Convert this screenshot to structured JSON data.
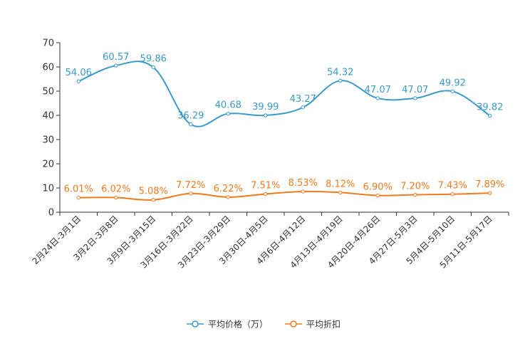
{
  "chart_data": {
    "type": "line",
    "title": "",
    "xlabel": "",
    "ylabel": "",
    "ylim": [
      0,
      70
    ],
    "yticks": [
      0,
      10,
      20,
      30,
      40,
      50,
      60,
      70
    ],
    "categories": [
      "2月24日-3月1日",
      "3月2日-3月8日",
      "3月9日-3月15日",
      "3月16日-3月22日",
      "3月23日-3月29日",
      "3月30日-4月5日",
      "4月6日-4月12日",
      "4月13日-4月19日",
      "4月20日-4月26日",
      "4月27日-5月3日",
      "5月4日-5月10日",
      "5月11日-5月17日"
    ],
    "series": [
      {
        "name": "平均价格（万）",
        "color": "#3a9ac9",
        "values": [
          54.06,
          60.57,
          59.86,
          36.29,
          40.68,
          39.99,
          43.27,
          54.32,
          47.07,
          47.07,
          49.92,
          39.82
        ],
        "labels": [
          "54.06",
          "60.57",
          "59.86",
          "36.29",
          "40.68",
          "39.99",
          "43.27",
          "54.32",
          "47.07",
          "47.07",
          "49.92",
          "39.82"
        ]
      },
      {
        "name": "平均折扣",
        "color": "#f07a1e",
        "values": [
          6.01,
          6.02,
          5.08,
          7.72,
          6.22,
          7.51,
          8.53,
          8.12,
          6.9,
          7.2,
          7.43,
          7.89
        ],
        "labels": [
          "6.01%",
          "6.02%",
          "5.08%",
          "7.72%",
          "6.22%",
          "7.51%",
          "8.53%",
          "8.12%",
          "6.90%",
          "7.20%",
          "7.43%",
          "7.89%"
        ]
      }
    ],
    "legend": {
      "position": "bottom-center",
      "items": [
        "平均价格（万）",
        "平均折扣"
      ]
    },
    "colors": {
      "axis": "#333333",
      "background": "#ffffff"
    }
  }
}
